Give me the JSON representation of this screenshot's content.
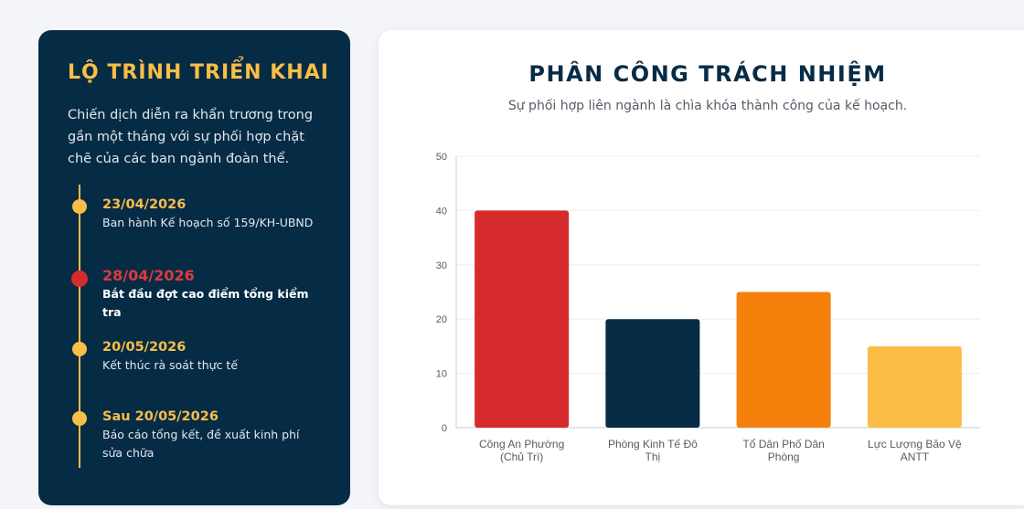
{
  "timeline_panel": {
    "title": "LỘ TRÌNH TRIỂN KHAI",
    "intro": "Chiến dịch diễn ra khẩn trương trong gần một tháng với sự phối hợp chặt chẽ của các ban ngành đoàn thể.",
    "items": [
      {
        "date": "23/04/2026",
        "desc": "Ban hành Kế hoạch số 159/KH-UBND"
      },
      {
        "date": "28/04/2026",
        "desc": "Bắt đầu đợt cao điểm tổng kiểm tra"
      },
      {
        "date": "20/05/2026",
        "desc": "Kết thúc rà soát thực tế"
      },
      {
        "date": "Sau 20/05/2026",
        "desc": "Báo cáo tổng kết, đề xuất kinh phí sửa chữa"
      }
    ]
  },
  "chart_panel": {
    "title": "PHÂN CÔNG TRÁCH NHIỆM",
    "subtitle": "Sự phối hợp liên ngành là chìa khóa thành công của kế hoạch."
  },
  "chart_data": {
    "type": "bar",
    "categories": [
      [
        "Công An Phường",
        "(Chủ Trì)"
      ],
      [
        "Phòng Kinh Tế Đô",
        "Thị"
      ],
      [
        "Tổ Dân Phố Dân",
        "Phòng"
      ],
      [
        "Lực Lượng Bảo Vệ",
        "ANTT"
      ]
    ],
    "values": [
      40,
      20,
      25,
      15
    ],
    "colors": [
      "#d62b2c",
      "#062b45",
      "#f5800b",
      "#fcbd46"
    ],
    "ylim": [
      0,
      50
    ],
    "yticks": [
      0,
      10,
      20,
      30,
      40,
      50
    ],
    "grid": true,
    "legend": "none",
    "title": "",
    "xlabel": "",
    "ylabel": ""
  }
}
